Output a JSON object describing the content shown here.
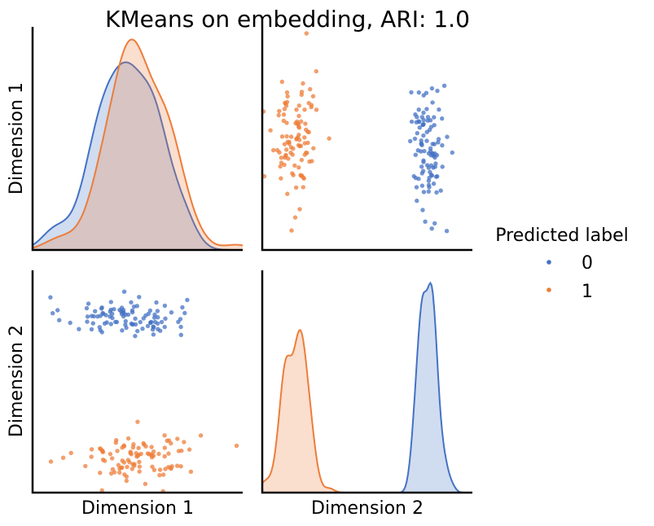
{
  "chart_data": {
    "type": "pairplot",
    "title": "KMeans on embedding, ARI: 1.0",
    "variables": [
      "Dimension 1",
      "Dimension 2"
    ],
    "hue_title": "Predicted label",
    "hue_levels": [
      "0",
      "1"
    ],
    "colors": {
      "0": "#4472c4",
      "1": "#ed7d3a"
    },
    "grid": false,
    "legend_placement": "right",
    "ranges": {
      "Dimension 1": [
        -3.6,
        2.9
      ],
      "Dimension 2": [
        -3.3,
        3.4
      ]
    },
    "clusters": [
      {
        "label": "0",
        "n": 100,
        "dim1_mean": -0.75,
        "dim1_std": 0.95,
        "dim2_mean": 2.0,
        "dim2_std": 0.3
      },
      {
        "label": "1",
        "n": 100,
        "dim1_mean": -0.35,
        "dim1_std": 0.95,
        "dim2_mean": -2.2,
        "dim2_std": 0.4
      }
    ]
  }
}
